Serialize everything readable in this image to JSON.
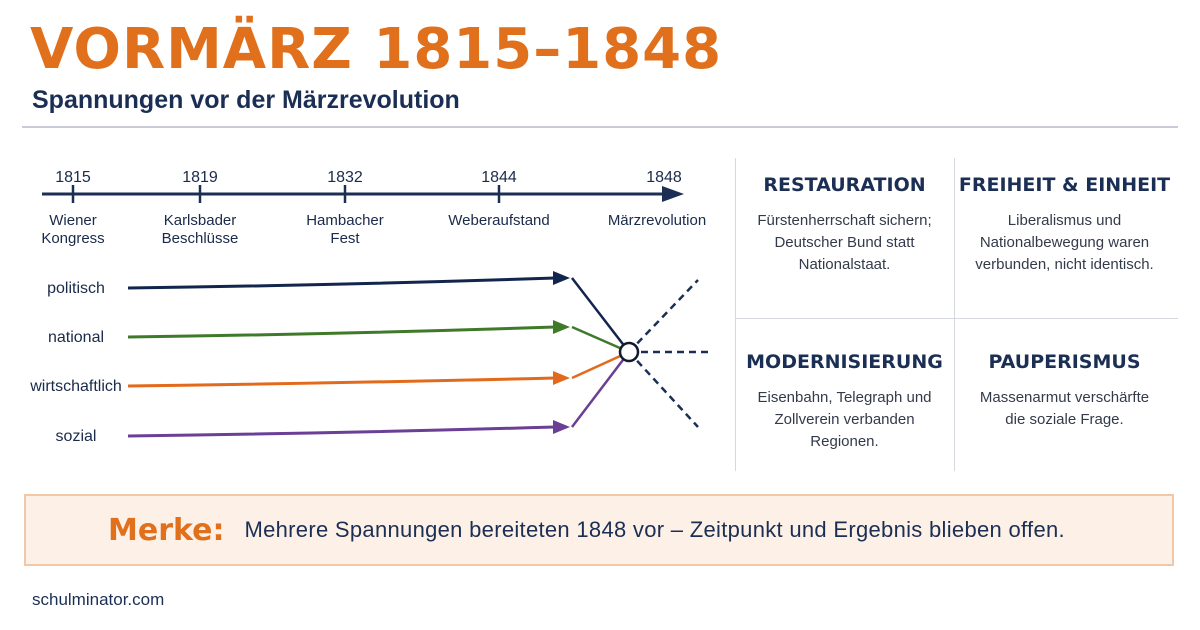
{
  "header": {
    "title": "VORMÄRZ 1815–1848",
    "subtitle": "Spannungen vor der Märzrevolution"
  },
  "timeline": {
    "events": [
      {
        "year": "1815",
        "label_lines": [
          "Wiener",
          "Kongress"
        ]
      },
      {
        "year": "1819",
        "label_lines": [
          "Karlsbader",
          "Beschlüsse"
        ]
      },
      {
        "year": "1832",
        "label_lines": [
          "Hambacher",
          "Fest"
        ]
      },
      {
        "year": "1844",
        "label_lines": [
          "Weberaufstand"
        ]
      },
      {
        "year": "1848",
        "label_lines": [
          "Märzrevolution"
        ]
      }
    ],
    "axis_color": "#1b2f55"
  },
  "strands": [
    {
      "label": "politisch",
      "color": "#12254d"
    },
    {
      "label": "national",
      "color": "#3f7a2a"
    },
    {
      "label": "wirtschaftlich",
      "color": "#e26a1c"
    },
    {
      "label": "sozial",
      "color": "#6a3f95"
    }
  ],
  "cells": [
    {
      "title": "RESTAURATION",
      "text_lines": [
        "Fürstenherrschaft sichern;",
        "Deutscher Bund statt",
        "Nationalstaat."
      ]
    },
    {
      "title": "FREIHEIT & EINHEIT",
      "text_lines": [
        "Liberalismus und",
        "Nationalbewegung waren",
        "verbunden, nicht identisch."
      ]
    },
    {
      "title": "MODERNISIERUNG",
      "text_lines": [
        "Eisenbahn, Telegraph und",
        "Zollverein verbanden",
        "Regionen."
      ]
    },
    {
      "title": "PAUPERISMUS",
      "text_lines": [
        "Massenarmut verschärfte",
        "die soziale Frage."
      ]
    }
  ],
  "merke": {
    "label": "Merke:",
    "text": "Mehrere Spannungen bereiteten 1848 vor – Zeitpunkt und Ergebnis blieben offen."
  },
  "footer": "schulminator.com",
  "colors": {
    "accent": "#e0701c",
    "navy": "#1b2f55"
  }
}
